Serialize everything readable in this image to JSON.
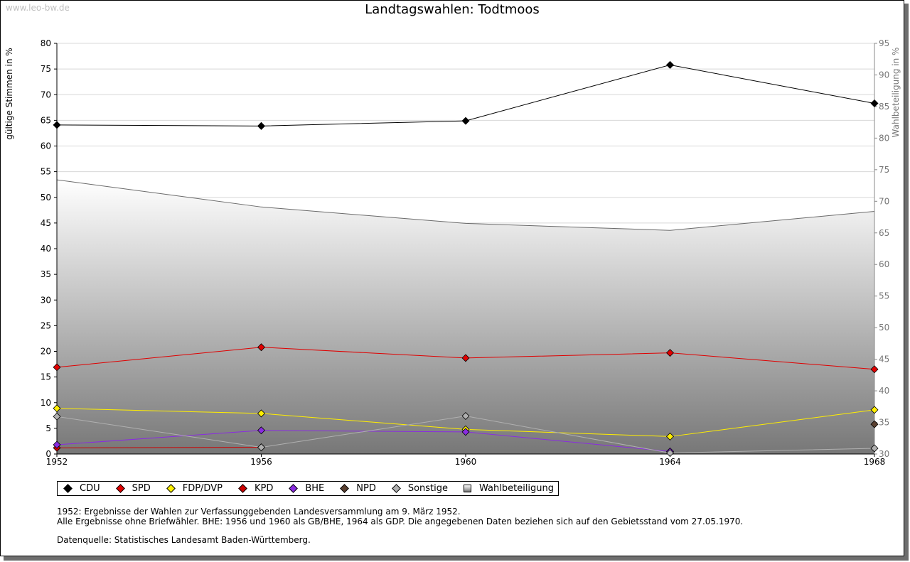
{
  "watermark": "www.leo-bw.de",
  "footnotes": {
    "line1": "1952: Ergebnisse der Wahlen zur Verfassunggebenden Landesversammlung am 9. März 1952.",
    "line2": "Alle Ergebnisse ohne Briefwähler. BHE: 1956 und 1960 als GB/BHE, 1964 als GDP. Die angegebenen Daten beziehen sich auf den Gebietsstand vom 27.05.1970.",
    "line3": "Datenquelle: Statistisches Landesamt Baden-Württemberg."
  },
  "chart_data": {
    "type": "line",
    "title": "Landtagswahlen: Todtmoos",
    "ylabel": "gültige Stimmen in %",
    "y2label": "Wahlbeteiligung in %",
    "x": [
      1952,
      1956,
      1960,
      1964,
      1968
    ],
    "ylim": [
      0,
      80
    ],
    "yticks": [
      0,
      5,
      10,
      15,
      20,
      25,
      30,
      35,
      40,
      45,
      50,
      55,
      60,
      65,
      70,
      75,
      80
    ],
    "y2lim": [
      30,
      95
    ],
    "y2ticks": [
      30,
      35,
      40,
      45,
      50,
      55,
      60,
      65,
      70,
      75,
      80,
      85,
      90,
      95
    ],
    "grid": true,
    "legend_position": "bottom",
    "series": [
      {
        "name": "CDU",
        "color": "#000000",
        "values": [
          64.1,
          63.9,
          64.9,
          75.8,
          68.3
        ]
      },
      {
        "name": "SPD",
        "color": "#e00000",
        "values": [
          16.9,
          20.8,
          18.7,
          19.7,
          16.5
        ]
      },
      {
        "name": "FDP/DVP",
        "color": "#ffee00",
        "values": [
          8.9,
          7.9,
          4.8,
          3.4,
          8.6
        ]
      },
      {
        "name": "KPD",
        "color": "#cc0000",
        "values": [
          1.2,
          1.3,
          null,
          null,
          null
        ]
      },
      {
        "name": "BHE",
        "color": "#8a2be2",
        "values": [
          1.8,
          4.6,
          4.3,
          0.5,
          null
        ]
      },
      {
        "name": "NPD",
        "color": "#5a4030",
        "values": [
          null,
          null,
          null,
          null,
          5.8
        ]
      },
      {
        "name": "Sonstige",
        "color": "#b0b0b0",
        "values": [
          7.3,
          1.3,
          7.4,
          0.2,
          1.1
        ]
      }
    ],
    "turnout": {
      "name": "Wahlbeteiligung",
      "values": [
        73.4,
        69.1,
        66.5,
        65.4,
        68.4
      ]
    }
  }
}
